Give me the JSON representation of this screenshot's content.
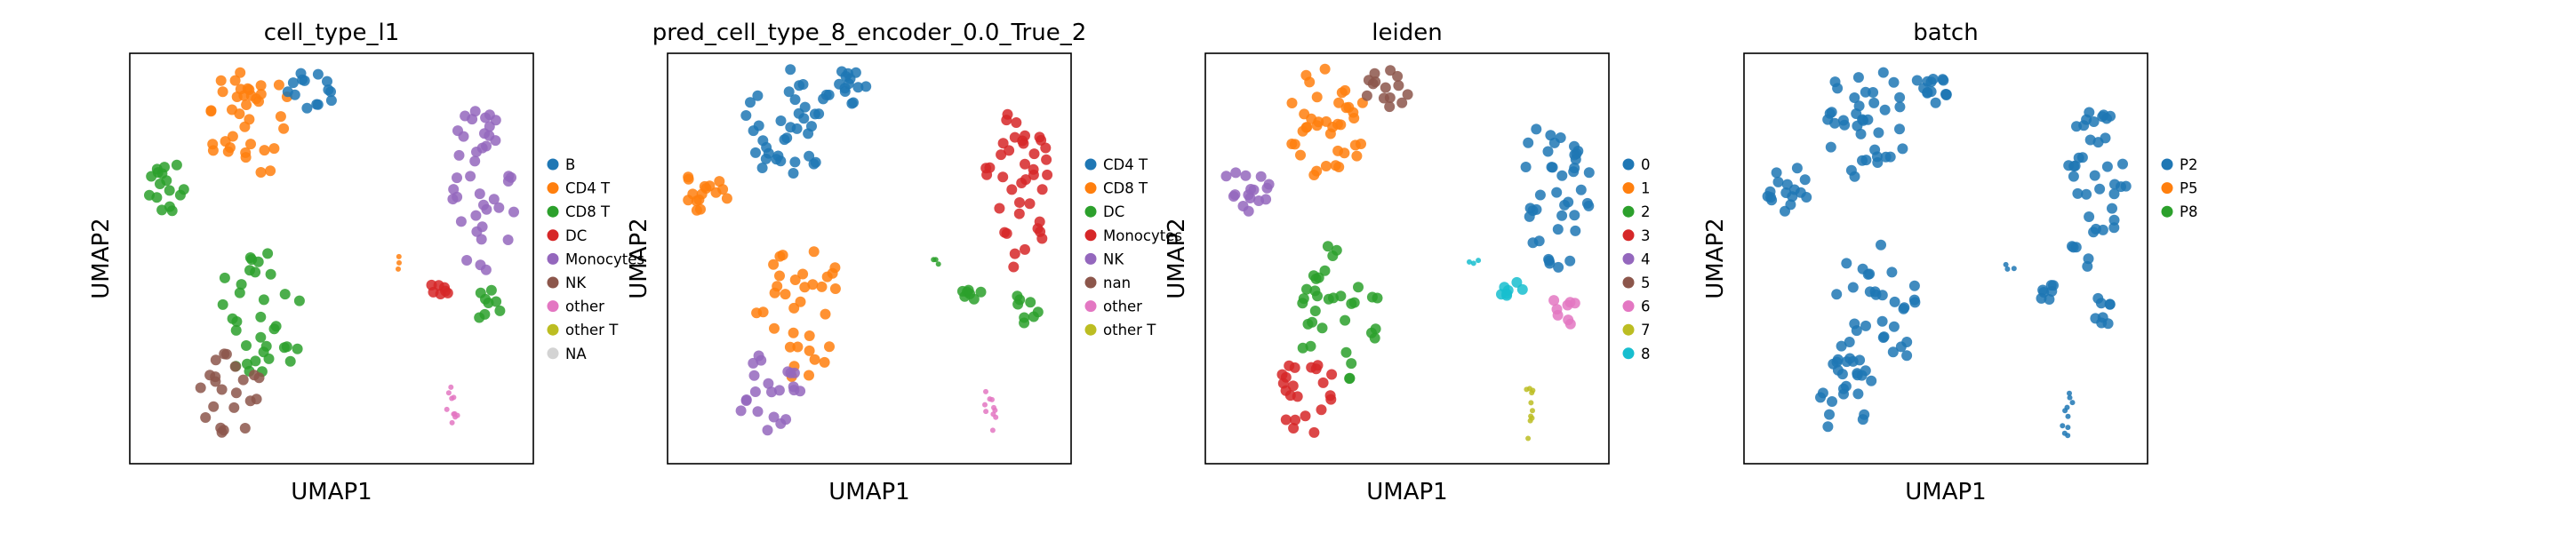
{
  "chart_data": [
    {
      "type": "scatter",
      "title": "cell_type_l1",
      "xlabel": "UMAP1",
      "ylabel": "UMAP2",
      "grid": false,
      "legend": "right",
      "categories": [
        {
          "name": "B",
          "color": "#1f77b4"
        },
        {
          "name": "CD4 T",
          "color": "#ff7f0e"
        },
        {
          "name": "CD8 T",
          "color": "#2ca02c"
        },
        {
          "name": "DC",
          "color": "#d62728"
        },
        {
          "name": "Monocytes",
          "color": "#9467bd"
        },
        {
          "name": "NK",
          "color": "#8c564b"
        },
        {
          "name": "other",
          "color": "#e377c2"
        },
        {
          "name": "other T",
          "color": "#bcbd22"
        },
        {
          "name": "NA",
          "color": "#d3d3d3"
        }
      ],
      "regions": {
        "top_cluster": "CD4 T",
        "top_right_blob": "B",
        "left_blob": "CD8 T",
        "mid_cluster": "CD8 T",
        "bottom_blob": "NK",
        "right_cluster": "Monocytes",
        "right_stub": "DC",
        "right_arm": "CD8 T",
        "streak": "other",
        "dots": "CD4 T"
      }
    },
    {
      "type": "scatter",
      "title": "pred_cell_type_8_encoder_0.0_True_2",
      "xlabel": "UMAP1",
      "ylabel": "UMAP2",
      "grid": false,
      "legend": "right",
      "categories": [
        {
          "name": "CD4 T",
          "color": "#1f77b4"
        },
        {
          "name": "CD8 T",
          "color": "#ff7f0e"
        },
        {
          "name": "DC",
          "color": "#2ca02c"
        },
        {
          "name": "Monocytes",
          "color": "#d62728"
        },
        {
          "name": "NK",
          "color": "#9467bd"
        },
        {
          "name": "nan",
          "color": "#8c564b"
        },
        {
          "name": "other",
          "color": "#e377c2"
        },
        {
          "name": "other T",
          "color": "#bcbd22"
        }
      ],
      "regions": {
        "top_cluster": "CD4 T",
        "top_right_blob": "CD4 T",
        "left_blob": "CD8 T",
        "mid_cluster": "CD8 T",
        "bottom_blob": "NK",
        "right_cluster": "Monocytes",
        "right_stub": "DC",
        "right_arm": "DC",
        "streak": "other",
        "dots": "DC"
      }
    },
    {
      "type": "scatter",
      "title": "leiden",
      "xlabel": "UMAP1",
      "ylabel": "UMAP2",
      "grid": false,
      "legend": "right",
      "categories": [
        {
          "name": "0",
          "color": "#1f77b4"
        },
        {
          "name": "1",
          "color": "#ff7f0e"
        },
        {
          "name": "2",
          "color": "#2ca02c"
        },
        {
          "name": "3",
          "color": "#d62728"
        },
        {
          "name": "4",
          "color": "#9467bd"
        },
        {
          "name": "5",
          "color": "#8c564b"
        },
        {
          "name": "6",
          "color": "#e377c2"
        },
        {
          "name": "7",
          "color": "#bcbd22"
        },
        {
          "name": "8",
          "color": "#17becf"
        }
      ],
      "regions": {
        "top_cluster": "1",
        "top_right_blob": "5",
        "left_blob": "4",
        "mid_cluster": "2",
        "bottom_blob": "3",
        "right_cluster": "0",
        "right_stub": "8",
        "right_arm": "6",
        "streak": "7",
        "dots": "8"
      }
    },
    {
      "type": "scatter",
      "title": "batch",
      "xlabel": "UMAP1",
      "ylabel": "UMAP2",
      "grid": false,
      "legend": "right",
      "categories": [
        {
          "name": "P2",
          "color": "#1f77b4"
        },
        {
          "name": "P5",
          "color": "#ff7f0e"
        },
        {
          "name": "P8",
          "color": "#2ca02c"
        }
      ],
      "regions": {
        "top_cluster": "P2",
        "top_right_blob": "P2",
        "left_blob": "P2",
        "mid_cluster": "P2",
        "bottom_blob": "P2",
        "right_cluster": "P2",
        "right_stub": "P2",
        "right_arm": "P2",
        "streak": "P2",
        "dots": "P2"
      }
    }
  ]
}
